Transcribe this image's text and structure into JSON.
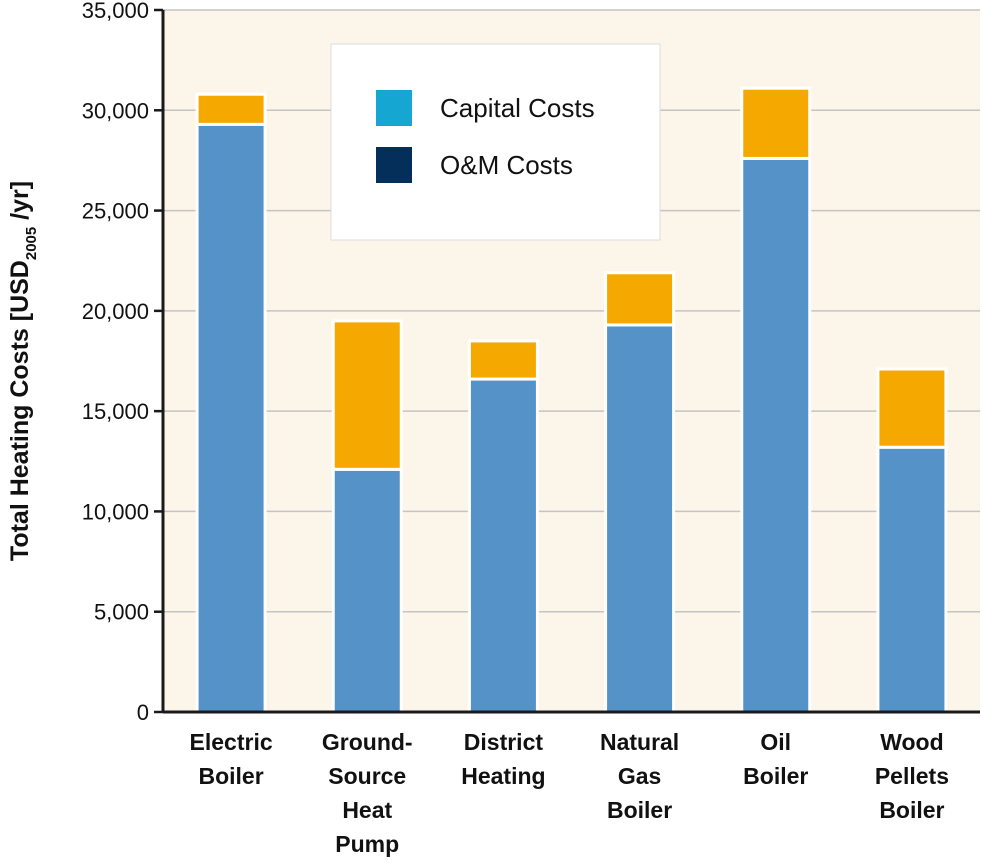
{
  "chart_data": {
    "type": "bar",
    "stacked": true,
    "title": "",
    "xlabel": "",
    "ylabel": {
      "text": "Total Heating Costs [USD",
      "subscript": "2005",
      "suffix": "/yr]"
    },
    "ylim": [
      0,
      35000
    ],
    "yticks": [
      "0",
      "5,000",
      "10,000",
      "15,000",
      "20,000",
      "25,000",
      "30,000",
      "35,000"
    ],
    "grid": true,
    "legend_position": "top-center",
    "categories": [
      [
        "Electric",
        "Boiler"
      ],
      [
        "Ground-",
        "Source",
        "Heat",
        "Pump"
      ],
      [
        "District",
        "Heating"
      ],
      [
        "Natural",
        "Gas",
        "Boiler"
      ],
      [
        "Oil",
        "Boiler"
      ],
      [
        "Wood",
        "Pellets",
        "Boiler"
      ]
    ],
    "series": [
      {
        "name": "O&M Costs",
        "values": [
          29300,
          12100,
          16600,
          19300,
          27600,
          13200
        ],
        "color": "#5592c8"
      },
      {
        "name": "Capital Costs",
        "values": [
          1500,
          7400,
          1900,
          2600,
          3500,
          3900
        ],
        "color": "#f5a800"
      }
    ],
    "legend": [
      {
        "label": "Capital Costs",
        "color": "#15a7d2"
      },
      {
        "label": "O&M Costs",
        "color": "#032f5a"
      }
    ],
    "colors": {
      "plot_background": "#fcf5ea",
      "grid": "#c4c4c4",
      "axis": "#1a1a1a"
    }
  }
}
